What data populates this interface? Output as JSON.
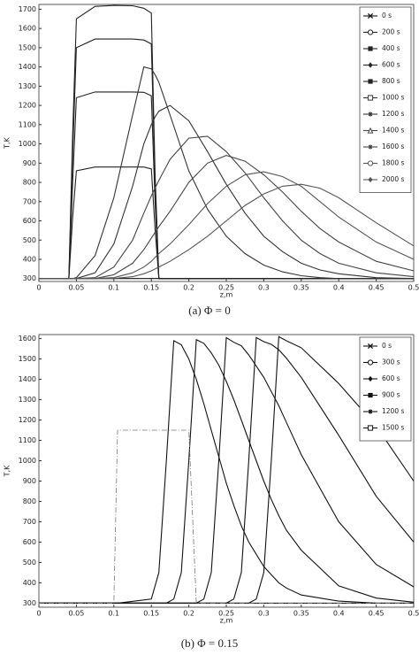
{
  "chart_data": [
    {
      "type": "line",
      "caption": "(a)  Φ = 0",
      "xlabel": "z,m",
      "ylabel": "T,K",
      "legend": "upper right",
      "grid": false,
      "xlim": [
        0,
        0.5
      ],
      "xticks": [
        0,
        0.05,
        0.1,
        0.15,
        0.2,
        0.25,
        0.3,
        0.35,
        0.4,
        0.45,
        0.5
      ],
      "ylim": [
        285,
        1725
      ],
      "yticks": [
        300,
        400,
        500,
        600,
        700,
        800,
        900,
        1000,
        1100,
        1200,
        1300,
        1400,
        1500,
        1600,
        1700
      ],
      "x": [
        0,
        0.04,
        0.045,
        0.05,
        0.075,
        0.1,
        0.125,
        0.14,
        0.15,
        0.155,
        0.16,
        0.175,
        0.2,
        0.225,
        0.25,
        0.275,
        0.3,
        0.325,
        0.35,
        0.375,
        0.4,
        0.45,
        0.5
      ],
      "series": [
        {
          "name": "0 s",
          "marker": "x",
          "color": "#111",
          "values": [
            300,
            300,
            300,
            300,
            300,
            300,
            300,
            300,
            300,
            300,
            300,
            300,
            300,
            300,
            300,
            300,
            300,
            300,
            300,
            300,
            300,
            300,
            300
          ]
        },
        {
          "name": "200 s",
          "marker": "circle-open",
          "color": "#222",
          "values": [
            300,
            300,
            620,
            860,
            880,
            880,
            880,
            880,
            870,
            560,
            300,
            300,
            300,
            300,
            300,
            300,
            300,
            300,
            300,
            300,
            300,
            300,
            300
          ]
        },
        {
          "name": "400 s",
          "marker": "square",
          "color": "#222",
          "values": [
            300,
            300,
            800,
            1240,
            1270,
            1270,
            1270,
            1268,
            1250,
            700,
            300,
            300,
            300,
            300,
            300,
            300,
            300,
            300,
            300,
            300,
            300,
            300,
            300
          ]
        },
        {
          "name": "600 s",
          "marker": "diamond",
          "color": "#222",
          "values": [
            300,
            300,
            950,
            1500,
            1545,
            1545,
            1545,
            1540,
            1520,
            800,
            300,
            300,
            300,
            300,
            300,
            300,
            300,
            300,
            300,
            300,
            300,
            300,
            300
          ]
        },
        {
          "name": "800 s",
          "marker": "square",
          "color": "#222",
          "values": [
            300,
            300,
            1050,
            1650,
            1715,
            1720,
            1718,
            1705,
            1680,
            850,
            300,
            300,
            300,
            300,
            300,
            300,
            300,
            300,
            300,
            300,
            300,
            300,
            300
          ]
        },
        {
          "name": "1000 s",
          "marker": "square-open",
          "color": "#333",
          "values": [
            300,
            300,
            300,
            305,
            420,
            720,
            1150,
            1400,
            1390,
            1360,
            1320,
            1150,
            860,
            660,
            520,
            430,
            370,
            335,
            315,
            305,
            300,
            300,
            300
          ]
        },
        {
          "name": "1200 s",
          "marker": "star",
          "color": "#333",
          "values": [
            300,
            300,
            300,
            300,
            330,
            480,
            780,
            1000,
            1100,
            1140,
            1170,
            1200,
            1120,
            960,
            790,
            640,
            520,
            440,
            380,
            345,
            325,
            305,
            300
          ]
        },
        {
          "name": "1400 s",
          "marker": "triangle",
          "color": "#444",
          "values": [
            300,
            300,
            300,
            300,
            305,
            360,
            500,
            640,
            730,
            770,
            810,
            920,
            1030,
            1040,
            960,
            850,
            720,
            600,
            500,
            430,
            380,
            330,
            310
          ]
        },
        {
          "name": "1600 s",
          "marker": "star",
          "color": "#444",
          "values": [
            300,
            300,
            300,
            300,
            300,
            320,
            380,
            450,
            510,
            540,
            570,
            650,
            800,
            900,
            940,
            910,
            840,
            750,
            650,
            560,
            490,
            390,
            340
          ]
        },
        {
          "name": "1800 s",
          "marker": "circle-open",
          "color": "#555",
          "values": [
            300,
            300,
            300,
            300,
            300,
            305,
            330,
            360,
            390,
            410,
            430,
            480,
            580,
            690,
            780,
            840,
            855,
            830,
            780,
            700,
            620,
            490,
            400
          ]
        },
        {
          "name": "2000 s",
          "marker": "diamond",
          "color": "#555",
          "values": [
            300,
            300,
            300,
            300,
            300,
            300,
            310,
            325,
            340,
            350,
            360,
            390,
            450,
            520,
            600,
            680,
            740,
            780,
            790,
            770,
            720,
            590,
            470
          ]
        }
      ]
    },
    {
      "type": "line",
      "caption": "(b)  Φ = 0.15",
      "xlabel": "z,m",
      "ylabel": "T,K",
      "legend": "upper right",
      "grid": false,
      "xlim": [
        0,
        0.5
      ],
      "xticks": [
        0,
        0.05,
        0.1,
        0.15,
        0.2,
        0.25,
        0.3,
        0.35,
        0.4,
        0.45,
        0.5
      ],
      "ylim": [
        280,
        1620
      ],
      "yticks": [
        300,
        400,
        500,
        600,
        700,
        800,
        900,
        1000,
        1100,
        1200,
        1300,
        1400,
        1500,
        1600
      ],
      "x": [
        0,
        0.1,
        0.105,
        0.15,
        0.16,
        0.17,
        0.18,
        0.19,
        0.2,
        0.21,
        0.22,
        0.23,
        0.24,
        0.25,
        0.26,
        0.27,
        0.28,
        0.29,
        0.3,
        0.31,
        0.32,
        0.33,
        0.35,
        0.4,
        0.45,
        0.5
      ],
      "series": [
        {
          "name": "0 s",
          "marker": "x",
          "color": "#111",
          "values": [
            300,
            300,
            300,
            300,
            300,
            300,
            300,
            300,
            300,
            300,
            300,
            300,
            300,
            300,
            300,
            300,
            300,
            300,
            300,
            300,
            300,
            300,
            300,
            300,
            300,
            300
          ]
        },
        {
          "name": "300 s",
          "marker": "circle-open",
          "color": "#111",
          "values": [
            300,
            300,
            300,
            320,
            450,
            1000,
            1590,
            1570,
            1500,
            1400,
            1280,
            1150,
            1020,
            890,
            780,
            680,
            600,
            540,
            480,
            440,
            400,
            375,
            340,
            310,
            300,
            300
          ]
        },
        {
          "name": "600 s",
          "marker": "diamond",
          "color": "#111",
          "values": [
            300,
            300,
            300,
            300,
            300,
            300,
            320,
            450,
            1000,
            1595,
            1577,
            1530,
            1470,
            1390,
            1300,
            1200,
            1100,
            1000,
            900,
            810,
            730,
            660,
            560,
            385,
            325,
            305
          ]
        },
        {
          "name": "900 s",
          "marker": "square",
          "color": "#111",
          "values": [
            300,
            300,
            300,
            300,
            300,
            300,
            300,
            300,
            300,
            300,
            320,
            450,
            1000,
            1605,
            1582,
            1565,
            1520,
            1465,
            1410,
            1340,
            1270,
            1190,
            1030,
            700,
            490,
            380
          ]
        },
        {
          "name": "1200 s",
          "marker": "star",
          "color": "#111",
          "values": [
            300,
            300,
            300,
            300,
            300,
            300,
            300,
            300,
            300,
            300,
            300,
            300,
            300,
            300,
            320,
            450,
            1000,
            1605,
            1585,
            1572,
            1545,
            1505,
            1410,
            1125,
            825,
            600
          ]
        },
        {
          "name": "1500 s",
          "marker": "square-open",
          "color": "#111",
          "values": [
            300,
            300,
            300,
            300,
            300,
            300,
            300,
            300,
            300,
            300,
            300,
            300,
            300,
            300,
            300,
            300,
            300,
            320,
            450,
            1000,
            1610,
            1590,
            1555,
            1380,
            1170,
            900
          ]
        },
        {
          "color": "#777",
          "dash": true,
          "values": [
            300,
            300,
            1150,
            1150,
            1150,
            1150,
            1150,
            1150,
            1150,
            300,
            300,
            300,
            300,
            300,
            300,
            300,
            300,
            300,
            300,
            300,
            300,
            300,
            300,
            300,
            300,
            300
          ]
        }
      ]
    }
  ]
}
